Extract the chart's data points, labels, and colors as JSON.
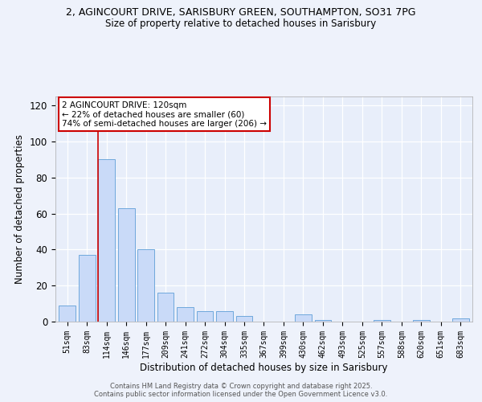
{
  "title_line1": "2, AGINCOURT DRIVE, SARISBURY GREEN, SOUTHAMPTON, SO31 7PG",
  "title_line2": "Size of property relative to detached houses in Sarisbury",
  "xlabel": "Distribution of detached houses by size in Sarisbury",
  "ylabel": "Number of detached properties",
  "bar_labels": [
    "51sqm",
    "83sqm",
    "114sqm",
    "146sqm",
    "177sqm",
    "209sqm",
    "241sqm",
    "272sqm",
    "304sqm",
    "335sqm",
    "367sqm",
    "399sqm",
    "430sqm",
    "462sqm",
    "493sqm",
    "525sqm",
    "557sqm",
    "588sqm",
    "620sqm",
    "651sqm",
    "683sqm"
  ],
  "bar_values": [
    9,
    37,
    90,
    63,
    40,
    16,
    8,
    6,
    6,
    3,
    0,
    0,
    4,
    1,
    0,
    0,
    1,
    0,
    1,
    0,
    2
  ],
  "bar_color": "#c9daf8",
  "bar_edge_color": "#6fa8dc",
  "vline_color": "#cc0000",
  "annotation_title": "2 AGINCOURT DRIVE: 120sqm",
  "annotation_line1": "← 22% of detached houses are smaller (60)",
  "annotation_line2": "74% of semi-detached houses are larger (206) →",
  "annotation_box_color": "#ffffff",
  "annotation_box_edge": "#cc0000",
  "ylim": [
    0,
    125
  ],
  "yticks": [
    0,
    20,
    40,
    60,
    80,
    100,
    120
  ],
  "footer_line1": "Contains HM Land Registry data © Crown copyright and database right 2025.",
  "footer_line2": "Contains public sector information licensed under the Open Government Licence v3.0.",
  "bg_color": "#eef2fb",
  "plot_bg_color": "#e8eefa"
}
